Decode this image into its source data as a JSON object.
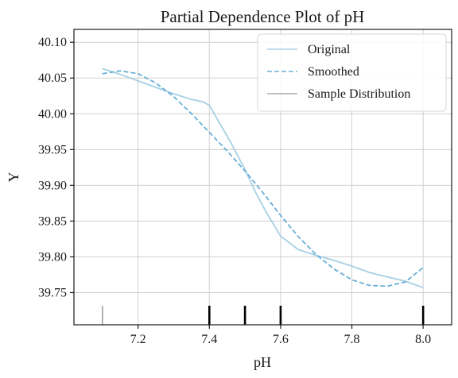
{
  "chart_data": {
    "type": "line",
    "title": "Partial Dependence Plot of pH",
    "xlabel": "pH",
    "ylabel": "Y",
    "xlim": [
      7.02,
      8.08
    ],
    "ylim": [
      39.705,
      40.118
    ],
    "grid": true,
    "legend_position": "top-right",
    "x_ticks": [
      7.2,
      7.4,
      7.6,
      7.8,
      8.0
    ],
    "x_tick_labels": [
      "7.2",
      "7.4",
      "7.6",
      "7.8",
      "8.0"
    ],
    "y_ticks": [
      39.75,
      39.8,
      39.85,
      39.9,
      39.95,
      40.0,
      40.05,
      40.1
    ],
    "y_tick_labels": [
      "39.75",
      "39.80",
      "39.85",
      "39.90",
      "39.95",
      "40.00",
      "40.05",
      "40.10"
    ],
    "series": [
      {
        "name": "Original",
        "style": "solid",
        "color": "#a6d0e3",
        "x": [
          7.1,
          7.15,
          7.2,
          7.25,
          7.3,
          7.35,
          7.38,
          7.4,
          7.43,
          7.46,
          7.5,
          7.53,
          7.56,
          7.6,
          7.65,
          7.7,
          7.75,
          7.8,
          7.85,
          7.9,
          7.95,
          8.0
        ],
        "y": [
          40.063,
          40.055,
          40.046,
          40.037,
          40.028,
          40.02,
          40.017,
          40.012,
          39.986,
          39.96,
          39.922,
          39.89,
          39.862,
          39.829,
          39.81,
          39.802,
          39.795,
          39.787,
          39.778,
          39.772,
          39.766,
          39.757
        ]
      },
      {
        "name": "Smoothed",
        "style": "dashed",
        "color": "#6aaed6",
        "x": [
          7.1,
          7.15,
          7.2,
          7.25,
          7.3,
          7.35,
          7.4,
          7.45,
          7.5,
          7.55,
          7.6,
          7.65,
          7.7,
          7.75,
          7.8,
          7.85,
          7.9,
          7.95,
          8.0
        ],
        "y": [
          40.056,
          40.06,
          40.056,
          40.043,
          40.024,
          40.0,
          39.974,
          39.948,
          39.92,
          39.89,
          39.858,
          39.828,
          39.803,
          39.783,
          39.768,
          39.76,
          39.759,
          39.765,
          39.785
        ]
      }
    ],
    "sample_distribution": {
      "name": "Sample Distribution",
      "color": "#9a9a9a",
      "rug": [
        {
          "x": 7.1,
          "weight": "light"
        },
        {
          "x": 7.4,
          "weight": "heavy"
        },
        {
          "x": 7.5,
          "weight": "heavy"
        },
        {
          "x": 7.6,
          "weight": "heavy"
        },
        {
          "x": 8.0,
          "weight": "heavy"
        }
      ]
    }
  }
}
